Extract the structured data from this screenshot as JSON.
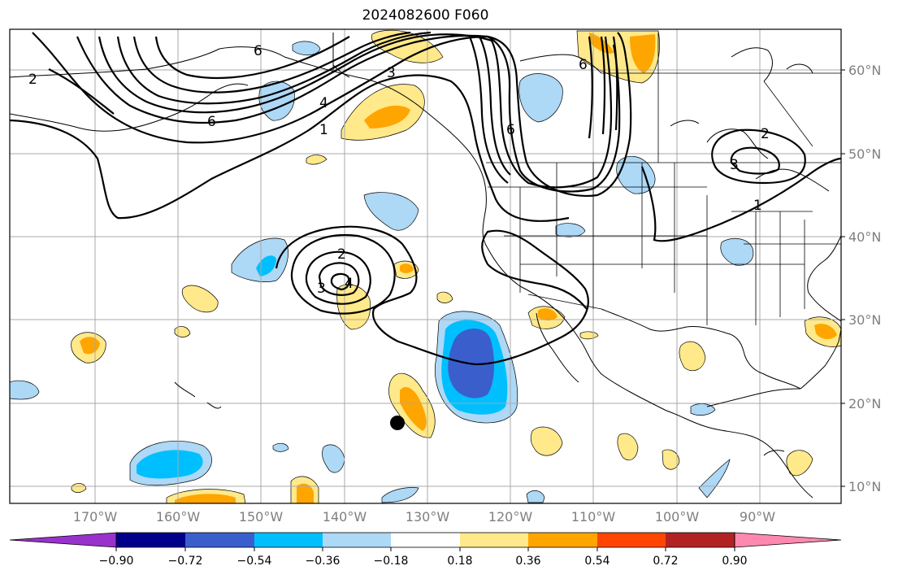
{
  "title": "2024082600 F060",
  "map": {
    "lat_labels": [
      "60°N",
      "50°N",
      "40°N",
      "30°N",
      "20°N",
      "10°N"
    ],
    "lon_labels": [
      "170°W",
      "160°W",
      "150°W",
      "140°W",
      "130°W",
      "120°W",
      "110°W",
      "100°W",
      "90°W"
    ],
    "contour_labels": [
      "2",
      "6",
      "4",
      "6",
      "3",
      "1",
      "6",
      "6",
      "2",
      "3",
      "1",
      "2",
      "3",
      "4"
    ],
    "marker": "storm-center-dot"
  },
  "colorbar": {
    "tick_labels": [
      "−0.90",
      "−0.72",
      "−0.54",
      "−0.36",
      "−0.18",
      "0.18",
      "0.36",
      "0.54",
      "0.72",
      "0.90"
    ],
    "colors": [
      "#9932cc",
      "#00008b",
      "#3a5fcd",
      "#00bfff",
      "#add8f6",
      "#ffffff",
      "#ffe98a",
      "#ffa500",
      "#ff4500",
      "#b22222",
      "#ff88b0"
    ]
  },
  "colors": {
    "grid": "#a9a9a9",
    "contour": "#000000",
    "land_line": "#000000"
  }
}
